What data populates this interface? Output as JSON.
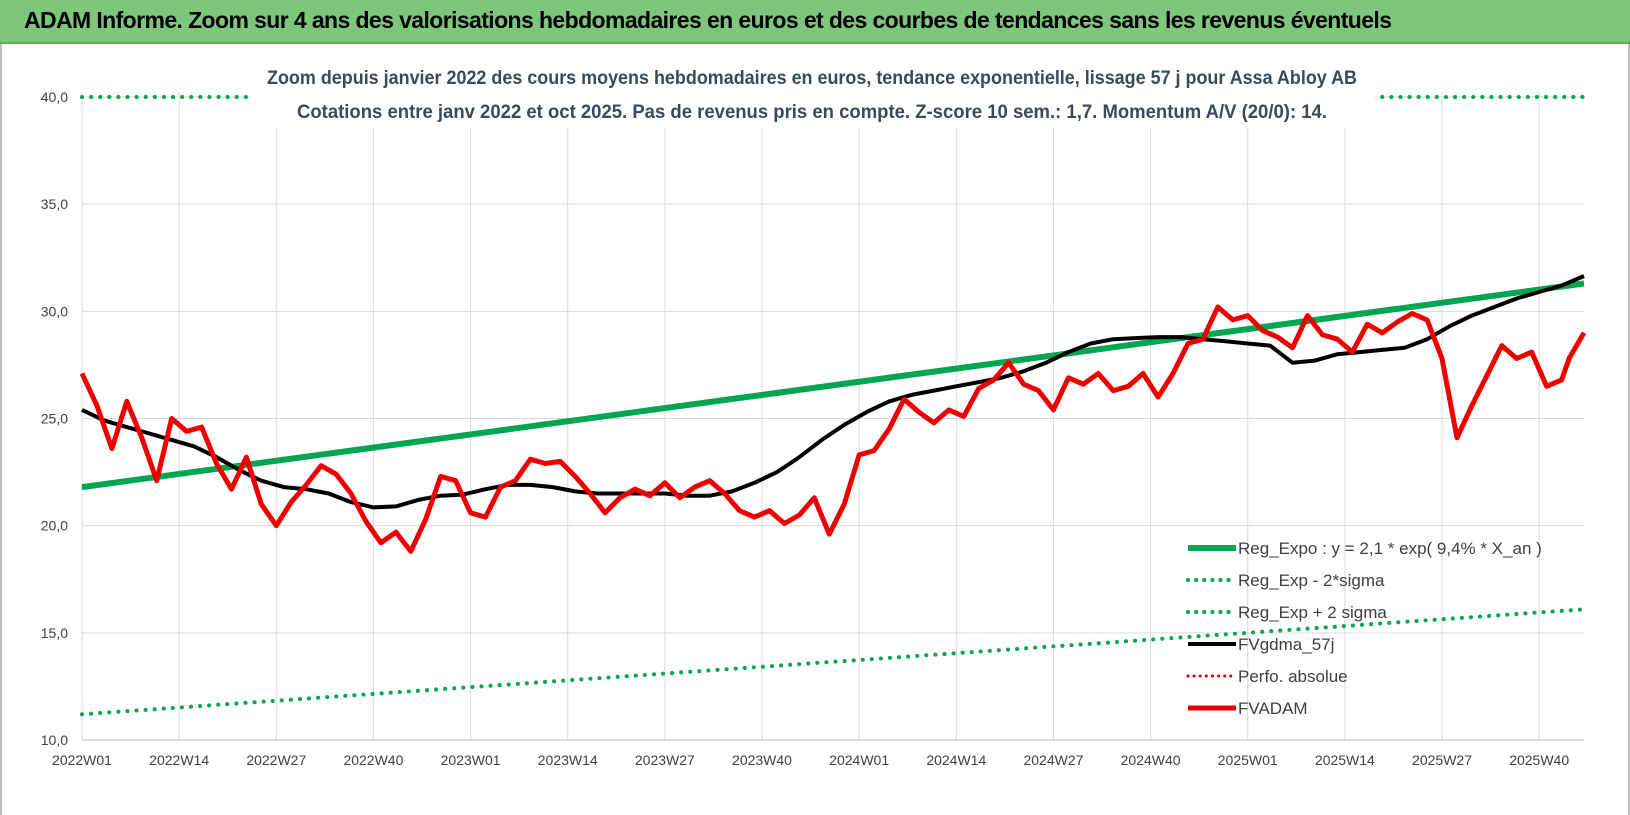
{
  "banner": {
    "title": "ADAM Informe. Zoom sur 4 ans des valorisations hebdomadaires en euros et des courbes de tendances sans les revenus éventuels"
  },
  "colors": {
    "banner_bg": "#7dc67b",
    "reg_expo": "#00a651",
    "sigma": "#00a651",
    "fvgdma": "#000000",
    "perfo": "#e00000",
    "fvadam": "#ee0000",
    "grid": "#d9d9d9",
    "axis_text": "#404040",
    "subtitle": "#3a4a5c"
  },
  "chart_data": {
    "type": "line",
    "title_line1": "Zoom depuis janvier 2022 des cours moyens hebdomadaires en euros, tendance exponentielle, lissage 57 j pour Assa Abloy AB",
    "title_line2": "Cotations entre janv 2022 et oct 2025. Pas de revenus pris en compte. Z-score 10 sem.: 1,7. Momentum A/V (20/0): 14.",
    "ylim": [
      10,
      40
    ],
    "yticks": [
      "10,0",
      "15,0",
      "20,0",
      "25,0",
      "30,0",
      "35,0",
      "40,0"
    ],
    "x_range": [
      0,
      201
    ],
    "xtick_labels": [
      "2022W01",
      "2022W14",
      "2022W27",
      "2022W40",
      "2023W01",
      "2023W14",
      "2023W27",
      "2023W40",
      "2024W01",
      "2024W14",
      "2024W27",
      "2024W40",
      "2025W01",
      "2025W14",
      "2025W27",
      "2025W40"
    ],
    "legend": [
      {
        "label": "Reg_Expo : y = 2,1 * exp( 9,4% *  X_an )",
        "style": "solid-green"
      },
      {
        "label": "Reg_Exp - 2*sigma",
        "style": "dotted-green"
      },
      {
        "label": "Reg_Exp + 2 sigma",
        "style": "dotted-green"
      },
      {
        "label": "FVgdma_57j",
        "style": "solid-black"
      },
      {
        "label": "Perfo. absolue",
        "style": "dotted-red"
      },
      {
        "label": "FVADAM",
        "style": "solid-red"
      }
    ],
    "series": [
      {
        "name": "Reg_Expo",
        "x": [
          0,
          201
        ],
        "values": [
          21.8,
          31.3
        ]
      },
      {
        "name": "Reg_Exp - 2*sigma",
        "x": [
          0,
          201
        ],
        "values": [
          11.2,
          16.1
        ]
      },
      {
        "name": "Reg_Exp + 2 sigma",
        "x": [
          0,
          23,
          174,
          201
        ],
        "values": [
          40.0,
          40.0,
          40.0,
          40.0
        ],
        "gap_after_index": 1
      },
      {
        "name": "FVgdma_57j",
        "x": [
          0,
          3,
          6,
          9,
          12,
          15,
          18,
          21,
          24,
          27,
          30,
          33,
          36,
          39,
          42,
          45,
          48,
          51,
          54,
          57,
          60,
          63,
          66,
          69,
          72,
          75,
          78,
          81,
          84,
          87,
          90,
          93,
          96,
          99,
          102,
          105,
          108,
          111,
          114,
          117,
          120,
          123,
          126,
          129,
          132,
          135,
          138,
          141,
          144,
          147,
          150,
          153,
          156,
          159,
          162,
          165,
          168,
          171,
          174,
          177,
          180,
          183,
          186,
          189,
          192,
          195,
          198,
          201
        ],
        "values": [
          25.4,
          24.9,
          24.6,
          24.3,
          24.0,
          23.7,
          23.2,
          22.6,
          22.1,
          21.8,
          21.7,
          21.5,
          21.1,
          20.85,
          20.9,
          21.2,
          21.4,
          21.45,
          21.7,
          21.9,
          21.9,
          21.8,
          21.6,
          21.5,
          21.5,
          21.5,
          21.5,
          21.4,
          21.4,
          21.6,
          22.0,
          22.5,
          23.2,
          24.0,
          24.7,
          25.3,
          25.8,
          26.1,
          26.3,
          26.5,
          26.7,
          26.9,
          27.2,
          27.6,
          28.1,
          28.5,
          28.7,
          28.75,
          28.8,
          28.8,
          28.7,
          28.6,
          28.5,
          28.4,
          27.6,
          27.7,
          28.0,
          28.1,
          28.2,
          28.3,
          28.7,
          29.3,
          29.8,
          30.2,
          30.6,
          30.9,
          31.2,
          31.65
        ]
      },
      {
        "name": "FVADAM",
        "x": [
          0,
          2,
          4,
          6,
          8,
          10,
          12,
          14,
          16,
          18,
          20,
          22,
          24,
          26,
          28,
          30,
          32,
          34,
          36,
          38,
          40,
          42,
          44,
          46,
          48,
          50,
          52,
          54,
          56,
          58,
          60,
          62,
          64,
          66,
          68,
          70,
          72,
          74,
          76,
          78,
          80,
          82,
          84,
          86,
          88,
          90,
          92,
          94,
          96,
          98,
          100,
          102,
          104,
          106,
          108,
          110,
          112,
          114,
          116,
          118,
          120,
          122,
          124,
          126,
          128,
          130,
          132,
          134,
          136,
          138,
          140,
          142,
          144,
          146,
          148,
          150,
          152,
          154,
          156,
          158,
          160,
          162,
          164,
          166,
          168,
          170,
          172,
          174,
          176,
          178,
          180,
          182,
          184,
          186,
          188,
          190,
          192,
          194,
          196,
          198,
          199,
          201
        ],
        "values": [
          27.1,
          25.6,
          23.6,
          25.8,
          24.1,
          22.1,
          25.0,
          24.4,
          24.6,
          22.9,
          21.7,
          23.2,
          21.0,
          20.0,
          21.1,
          21.9,
          22.8,
          22.4,
          21.5,
          20.2,
          19.2,
          19.7,
          18.8,
          20.3,
          22.3,
          22.1,
          20.6,
          20.4,
          21.8,
          22.1,
          23.1,
          22.9,
          23.0,
          22.3,
          21.5,
          20.6,
          21.3,
          21.7,
          21.4,
          22.0,
          21.3,
          21.8,
          22.1,
          21.5,
          20.7,
          20.4,
          20.7,
          20.1,
          20.5,
          21.3,
          19.6,
          21.0,
          23.3,
          23.5,
          24.5,
          25.9,
          25.3,
          24.8,
          25.4,
          25.1,
          26.4,
          26.8,
          27.6,
          26.6,
          26.3,
          25.4,
          26.9,
          26.6,
          27.1,
          26.3,
          26.5,
          27.1,
          26.0,
          27.1,
          28.5,
          28.7,
          30.2,
          29.6,
          29.8,
          29.1,
          28.8,
          28.3,
          29.8,
          28.9,
          28.7,
          28.1,
          29.4,
          29.0,
          29.5,
          29.9,
          29.6,
          27.8,
          24.1,
          25.6,
          27.0,
          28.4,
          27.8,
          28.1,
          26.5,
          26.8,
          27.8,
          29.0
        ]
      }
    ]
  }
}
